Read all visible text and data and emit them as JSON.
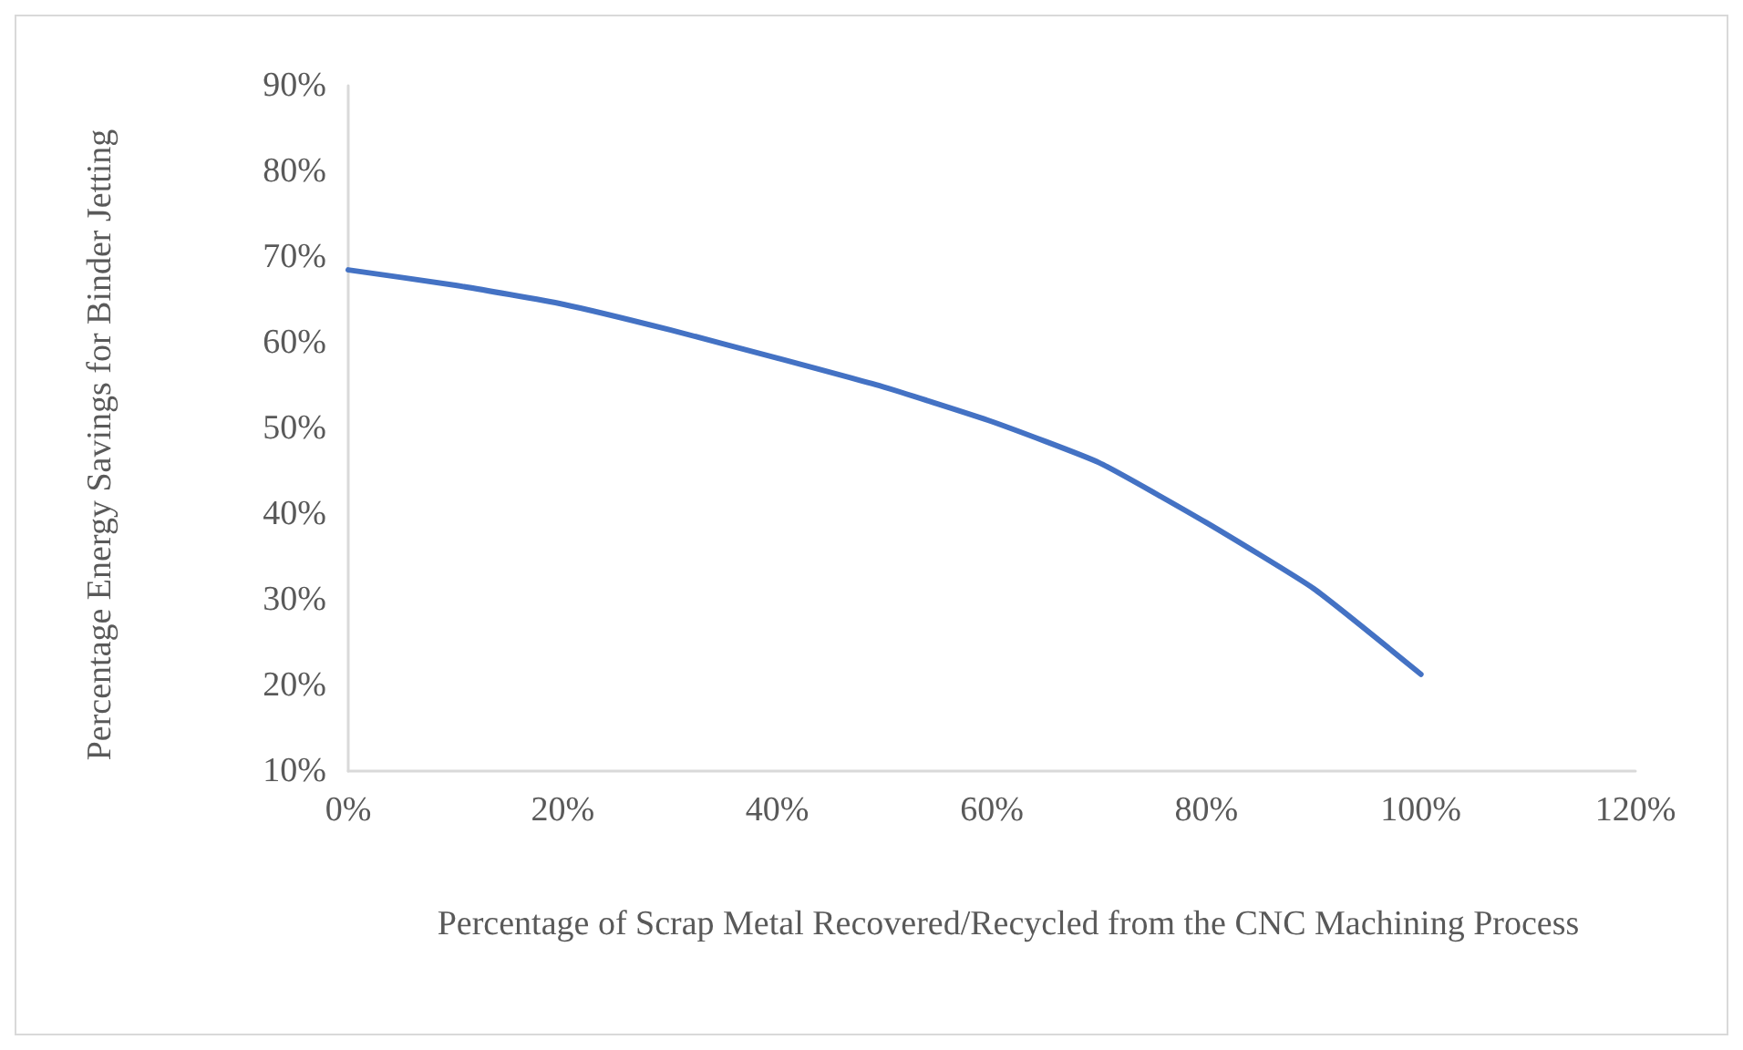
{
  "chart_data": {
    "type": "line",
    "xlabel": "Percentage of Scrap Metal Recovered/Recycled from the CNC Machining Process",
    "ylabel": "Percentage Energy Savings for Binder Jetting",
    "x": [
      0,
      10,
      20,
      30,
      40,
      50,
      60,
      70,
      80,
      90,
      100
    ],
    "series": [
      {
        "color": "#4472c4",
        "values": [
          68.5,
          66.7,
          64.5,
          61.5,
          58.2,
          54.8,
          50.8,
          46,
          39,
          31.3,
          21.3
        ]
      }
    ],
    "xlim": [
      0,
      120
    ],
    "xticks": [
      {
        "value": 0,
        "label": "0%"
      },
      {
        "value": 20,
        "label": "20%"
      },
      {
        "value": 40,
        "label": "40%"
      },
      {
        "value": 60,
        "label": "60%"
      },
      {
        "value": 80,
        "label": "80%"
      },
      {
        "value": 100,
        "label": "100%"
      },
      {
        "value": 120,
        "label": "120%"
      }
    ],
    "ylim": [
      10,
      90
    ],
    "yticks": [
      {
        "value": 10,
        "label": "10%"
      },
      {
        "value": 20,
        "label": "20%"
      },
      {
        "value": 30,
        "label": "30%"
      },
      {
        "value": 40,
        "label": "40%"
      },
      {
        "value": 50,
        "label": "50%"
      },
      {
        "value": 60,
        "label": "60%"
      },
      {
        "value": 70,
        "label": "70%"
      },
      {
        "value": 80,
        "label": "80%"
      },
      {
        "value": 90,
        "label": "90%"
      }
    ],
    "grid": false,
    "marker": "none",
    "line_style": "solid"
  }
}
